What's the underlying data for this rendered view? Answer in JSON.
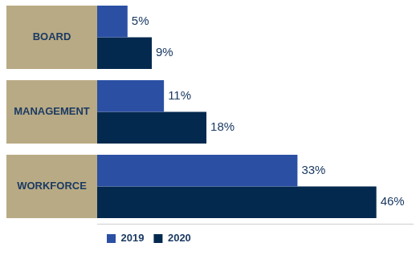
{
  "chart_data": {
    "type": "bar",
    "orientation": "horizontal",
    "categories": [
      "BOARD",
      "MANAGEMENT",
      "WORKFORCE"
    ],
    "series": [
      {
        "name": "2019",
        "color": "#2b50a3",
        "values": [
          5,
          11,
          33
        ],
        "value_labels": [
          "5%",
          "11%",
          "33%"
        ]
      },
      {
        "name": "2020",
        "color": "#04294f",
        "values": [
          9,
          18,
          46
        ],
        "value_labels": [
          "9%",
          "18%",
          "46%"
        ]
      }
    ],
    "xlim": [
      0,
      52
    ],
    "xticks": [],
    "tick_labels": false,
    "grid": false,
    "data_labels": true,
    "legend": "bottom-left"
  }
}
